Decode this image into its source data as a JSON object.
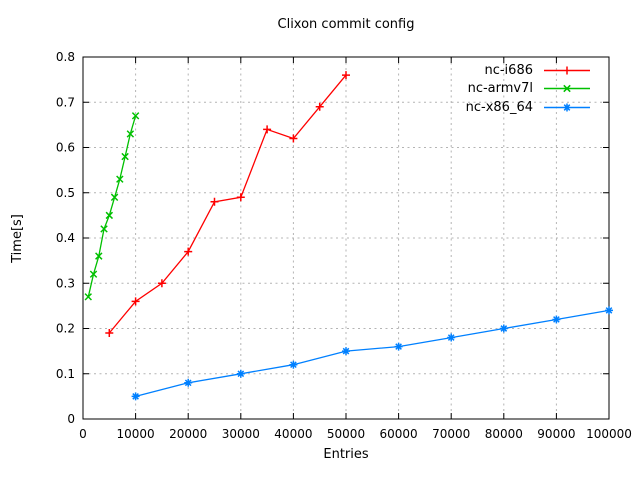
{
  "chart_data": {
    "type": "line",
    "title": "Clixon commit config",
    "xlabel": "Entries",
    "ylabel": "Time[s]",
    "xlim": [
      0,
      100000
    ],
    "ylim": [
      0,
      0.8
    ],
    "xticks": [
      0,
      10000,
      20000,
      30000,
      40000,
      50000,
      60000,
      70000,
      80000,
      90000,
      100000
    ],
    "xtick_labels": [
      "0",
      "10000",
      "20000",
      "30000",
      "40000",
      "50000",
      "60000",
      "70000",
      "80000",
      "90000",
      "100000"
    ],
    "yticks": [
      0,
      0.1,
      0.2,
      0.3,
      0.4,
      0.5,
      0.6,
      0.7,
      0.8
    ],
    "ytick_labels": [
      "0",
      "0.1",
      "0.2",
      "0.3",
      "0.4",
      "0.5",
      "0.6",
      "0.7",
      "0.8"
    ],
    "grid": true,
    "legend_position": "top-right",
    "series": [
      {
        "name": "nc-i686",
        "color": "#ff0000",
        "marker": "plus",
        "x": [
          5000,
          10000,
          15000,
          20000,
          25000,
          30000,
          35000,
          40000,
          45000,
          50000
        ],
        "y": [
          0.19,
          0.26,
          0.3,
          0.37,
          0.48,
          0.49,
          0.64,
          0.62,
          0.69,
          0.76
        ]
      },
      {
        "name": "nc-armv7l",
        "color": "#00c000",
        "marker": "cross",
        "x": [
          1000,
          2000,
          3000,
          4000,
          5000,
          6000,
          7000,
          8000,
          9000,
          10000
        ],
        "y": [
          0.27,
          0.32,
          0.36,
          0.42,
          0.45,
          0.49,
          0.53,
          0.58,
          0.63,
          0.67
        ]
      },
      {
        "name": "nc-x86_64",
        "color": "#0080ff",
        "marker": "asterisk",
        "x": [
          10000,
          20000,
          30000,
          40000,
          50000,
          60000,
          70000,
          80000,
          90000,
          100000
        ],
        "y": [
          0.05,
          0.08,
          0.1,
          0.12,
          0.15,
          0.16,
          0.18,
          0.2,
          0.22,
          0.24
        ]
      }
    ]
  },
  "colors": {
    "background": "#ffffff",
    "border": "#000000",
    "grid": "#b4b4b4",
    "text": "#000000"
  }
}
